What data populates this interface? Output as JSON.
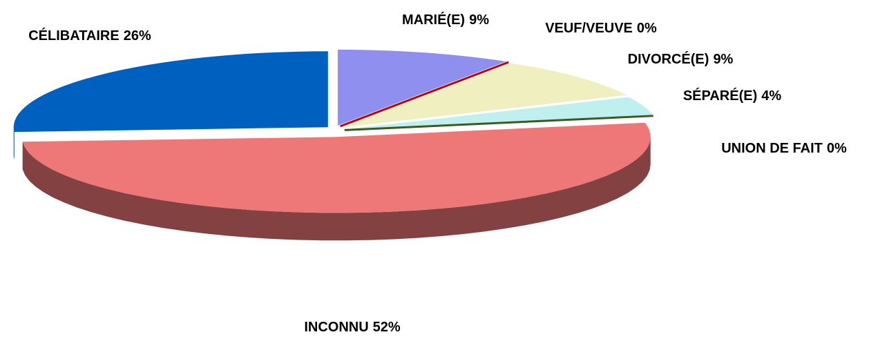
{
  "chart_data": {
    "type": "pie",
    "categories": [
      "MARIÉ(E)",
      "VEUF/VEUVE",
      "DIVORCÉ(E)",
      "SÉPARÉ(E)",
      "UNION DE FAIT",
      "INCONNU",
      "CÉLIBATAIRE"
    ],
    "values": [
      9,
      0,
      9,
      4,
      0,
      52,
      26
    ],
    "value_labels": [
      "9%",
      "0%",
      "9%",
      "4%",
      "0%",
      "52%",
      "26%"
    ],
    "colors": [
      "#8f8fef",
      "#c00000",
      "#efefc0",
      "#c0efef",
      "#3a5a20",
      "#ee7777",
      "#0060c0"
    ]
  }
}
